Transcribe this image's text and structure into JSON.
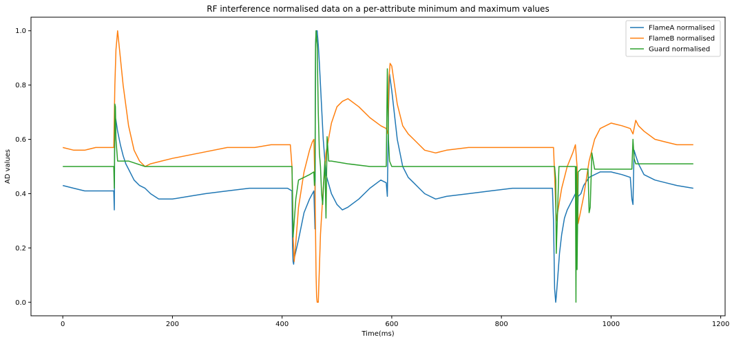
{
  "chart_data": {
    "type": "line",
    "title": "RF interference normalised data on a per-attribute minimum and maximum values",
    "xlabel": "Time(ms)",
    "ylabel": "AD values",
    "xlim": [
      -58,
      1208
    ],
    "ylim": [
      -0.05,
      1.05
    ],
    "xticks": [
      0,
      200,
      400,
      600,
      800,
      1000,
      1200
    ],
    "xtick_labels": [
      "0",
      "200",
      "400",
      "600",
      "800",
      "1000",
      "1200"
    ],
    "yticks": [
      0.0,
      0.2,
      0.4,
      0.6,
      0.8,
      1.0
    ],
    "ytick_labels": [
      "0.0",
      "0.2",
      "0.4",
      "0.6",
      "0.8",
      "1.0"
    ],
    "grid": false,
    "legend_position": "top-right",
    "series": [
      {
        "name": "FlameA normalised",
        "color": "#1f77b4",
        "x": [
          0,
          20,
          40,
          60,
          80,
          93,
          94,
          95,
          96,
          97,
          100,
          105,
          110,
          115,
          120,
          125,
          130,
          140,
          150,
          160,
          175,
          200,
          230,
          260,
          300,
          340,
          380,
          410,
          418,
          419,
          420,
          421,
          422,
          430,
          440,
          450,
          458,
          460,
          461,
          462,
          464,
          466,
          468,
          470,
          475,
          480,
          490,
          500,
          510,
          520,
          540,
          560,
          580,
          590,
          592,
          594,
          596,
          600,
          610,
          620,
          630,
          640,
          650,
          660,
          680,
          700,
          740,
          780,
          820,
          860,
          880,
          893,
          895,
          897,
          899,
          900,
          903,
          906,
          910,
          915,
          920,
          930,
          935,
          937,
          938,
          940,
          945,
          950,
          960,
          970,
          980,
          1000,
          1020,
          1035,
          1038,
          1040,
          1042,
          1045,
          1050,
          1060,
          1080,
          1100,
          1120,
          1150
        ],
        "y": [
          0.43,
          0.42,
          0.41,
          0.41,
          0.41,
          0.41,
          0.34,
          0.7,
          0.68,
          0.67,
          0.63,
          0.58,
          0.54,
          0.51,
          0.49,
          0.47,
          0.45,
          0.43,
          0.42,
          0.4,
          0.38,
          0.38,
          0.39,
          0.4,
          0.41,
          0.42,
          0.42,
          0.42,
          0.41,
          0.2,
          0.15,
          0.14,
          0.16,
          0.23,
          0.33,
          0.38,
          0.41,
          0.27,
          0.95,
          1.0,
          1.0,
          0.95,
          0.88,
          0.8,
          0.6,
          0.47,
          0.4,
          0.36,
          0.34,
          0.35,
          0.38,
          0.42,
          0.45,
          0.44,
          0.39,
          0.7,
          0.84,
          0.78,
          0.6,
          0.5,
          0.46,
          0.44,
          0.42,
          0.4,
          0.38,
          0.39,
          0.4,
          0.41,
          0.42,
          0.42,
          0.42,
          0.42,
          0.3,
          0.05,
          0.0,
          0.02,
          0.1,
          0.18,
          0.25,
          0.31,
          0.34,
          0.38,
          0.4,
          0.25,
          0.22,
          0.39,
          0.4,
          0.43,
          0.46,
          0.47,
          0.48,
          0.48,
          0.47,
          0.46,
          0.38,
          0.36,
          0.56,
          0.54,
          0.51,
          0.47,
          0.45,
          0.44,
          0.43,
          0.42
        ]
      },
      {
        "name": "FlameB normalised",
        "color": "#ff7f0e",
        "x": [
          0,
          20,
          40,
          60,
          80,
          93,
          95,
          97,
          100,
          105,
          110,
          120,
          130,
          140,
          150,
          160,
          180,
          200,
          250,
          300,
          350,
          380,
          400,
          415,
          418,
          420,
          422,
          425,
          430,
          440,
          450,
          455,
          458,
          460,
          462,
          463,
          464,
          466,
          470,
          475,
          480,
          490,
          500,
          510,
          520,
          540,
          560,
          580,
          590,
          593,
          595,
          597,
          600,
          610,
          620,
          630,
          640,
          650,
          660,
          680,
          700,
          740,
          780,
          820,
          850,
          880,
          895,
          897,
          900,
          905,
          910,
          920,
          930,
          935,
          938,
          940,
          945,
          950,
          960,
          970,
          980,
          1000,
          1020,
          1035,
          1040,
          1045,
          1050,
          1060,
          1080,
          1100,
          1120,
          1150
        ],
        "y": [
          0.57,
          0.56,
          0.56,
          0.57,
          0.57,
          0.57,
          0.8,
          0.93,
          1.0,
          0.9,
          0.8,
          0.65,
          0.56,
          0.52,
          0.5,
          0.51,
          0.52,
          0.53,
          0.55,
          0.57,
          0.57,
          0.58,
          0.58,
          0.58,
          0.5,
          0.25,
          0.15,
          0.22,
          0.35,
          0.48,
          0.56,
          0.59,
          0.6,
          0.43,
          0.1,
          0.02,
          0.0,
          0.0,
          0.25,
          0.42,
          0.55,
          0.66,
          0.72,
          0.74,
          0.75,
          0.72,
          0.68,
          0.65,
          0.64,
          0.62,
          0.83,
          0.88,
          0.87,
          0.73,
          0.65,
          0.62,
          0.6,
          0.58,
          0.56,
          0.55,
          0.56,
          0.57,
          0.57,
          0.57,
          0.57,
          0.57,
          0.57,
          0.47,
          0.3,
          0.36,
          0.42,
          0.5,
          0.55,
          0.58,
          0.5,
          0.29,
          0.34,
          0.39,
          0.52,
          0.6,
          0.64,
          0.66,
          0.65,
          0.64,
          0.62,
          0.67,
          0.65,
          0.63,
          0.6,
          0.59,
          0.58,
          0.58
        ]
      },
      {
        "name": "Guard normalised",
        "color": "#2ca02c",
        "x": [
          0,
          30,
          60,
          90,
          93,
          94,
          95,
          96,
          97,
          100,
          120,
          150,
          200,
          250,
          300,
          350,
          400,
          415,
          418,
          419,
          420,
          425,
          430,
          440,
          450,
          458,
          459,
          460,
          461,
          462,
          464,
          466,
          468,
          470,
          472,
          474,
          476,
          478,
          480,
          482,
          485,
          490,
          520,
          560,
          590,
          592,
          594,
          596,
          598,
          600,
          640,
          700,
          760,
          820,
          870,
          895,
          897,
          899,
          900,
          905,
          910,
          920,
          930,
          934,
          935,
          936,
          937,
          938,
          940,
          945,
          950,
          955,
          958,
          960,
          962,
          965,
          970,
          990,
          1010,
          1035,
          1038,
          1040,
          1042,
          1045,
          1060,
          1100,
          1150
        ],
        "y": [
          0.5,
          0.5,
          0.5,
          0.5,
          0.5,
          0.42,
          0.73,
          0.72,
          0.6,
          0.52,
          0.52,
          0.5,
          0.5,
          0.5,
          0.5,
          0.5,
          0.5,
          0.5,
          0.5,
          0.4,
          0.24,
          0.38,
          0.45,
          0.46,
          0.47,
          0.48,
          0.43,
          0.45,
          0.93,
          1.0,
          0.95,
          0.7,
          0.55,
          0.5,
          0.4,
          0.36,
          0.45,
          0.52,
          0.31,
          0.61,
          0.52,
          0.52,
          0.51,
          0.5,
          0.5,
          0.86,
          0.6,
          0.52,
          0.51,
          0.5,
          0.5,
          0.5,
          0.5,
          0.5,
          0.5,
          0.5,
          0.5,
          0.45,
          0.18,
          0.5,
          0.5,
          0.5,
          0.5,
          0.5,
          0.5,
          0.0,
          0.5,
          0.12,
          0.48,
          0.49,
          0.49,
          0.49,
          0.49,
          0.33,
          0.35,
          0.55,
          0.49,
          0.49,
          0.49,
          0.49,
          0.49,
          0.6,
          0.53,
          0.51,
          0.51,
          0.51,
          0.51
        ]
      }
    ]
  }
}
